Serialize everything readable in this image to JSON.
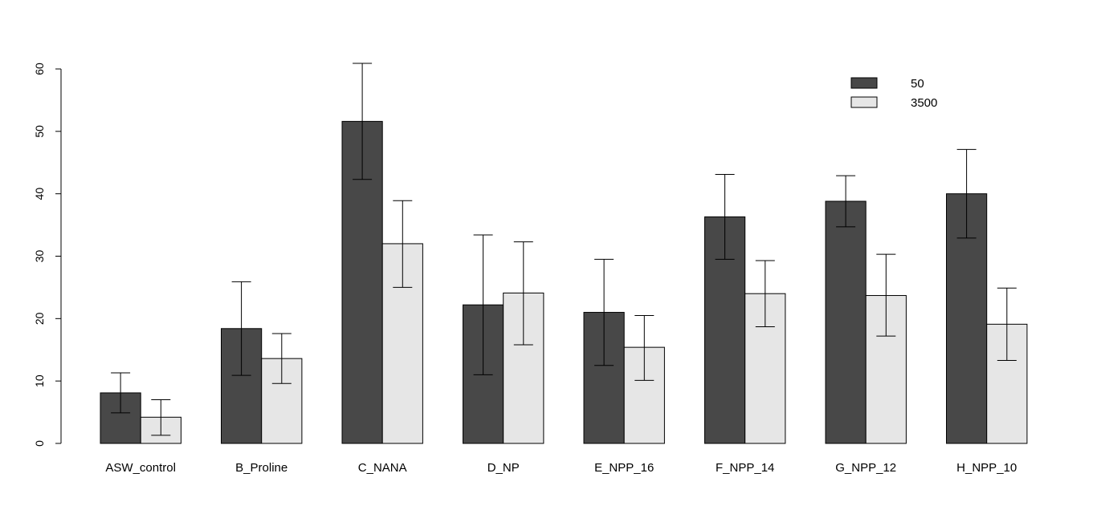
{
  "chart_data": {
    "type": "bar",
    "title": "",
    "xlabel": "",
    "ylabel": "",
    "ylim": [
      0,
      60
    ],
    "yticks": [
      0,
      10,
      20,
      30,
      40,
      50,
      60
    ],
    "grid": false,
    "legend_position": "top-right",
    "categories": [
      "ASW_control",
      "B_Proline",
      "C_NANA",
      "D_NP",
      "E_NPP_16",
      "F_NPP_14",
      "G_NPP_12",
      "H_NPP_10"
    ],
    "series": [
      {
        "name": "50",
        "color": "#484848",
        "values": [
          8.1,
          18.4,
          51.6,
          22.2,
          21.0,
          36.3,
          38.8,
          40.0
        ],
        "error_low": [
          4.9,
          10.9,
          42.3,
          11.0,
          12.5,
          29.5,
          34.7,
          32.9
        ],
        "error_high": [
          11.3,
          25.9,
          60.9,
          33.4,
          29.5,
          43.1,
          42.9,
          47.1
        ]
      },
      {
        "name": "3500",
        "color": "#e6e6e6",
        "values": [
          4.2,
          13.6,
          32.0,
          24.1,
          15.4,
          24.0,
          23.7,
          19.1
        ],
        "error_low": [
          1.3,
          9.6,
          25.0,
          15.8,
          10.1,
          18.7,
          17.2,
          13.3
        ],
        "error_high": [
          7.0,
          17.6,
          38.9,
          32.3,
          20.5,
          29.3,
          30.3,
          24.9
        ]
      }
    ]
  }
}
